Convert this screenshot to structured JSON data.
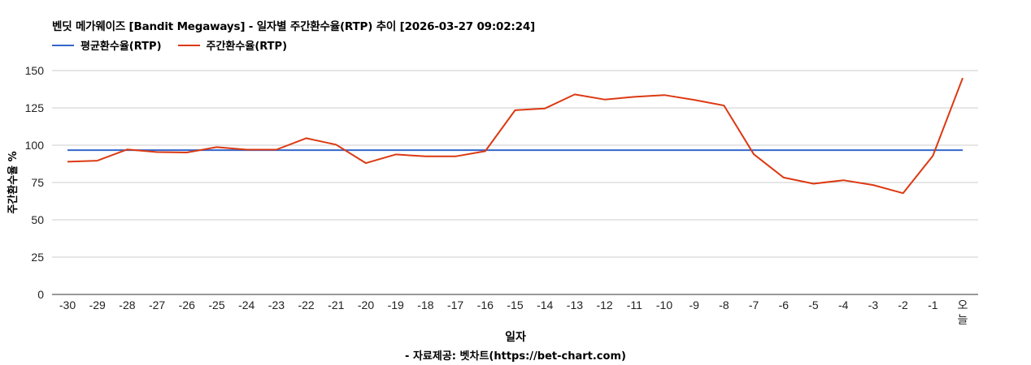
{
  "chart_data": {
    "type": "line",
    "title": "벤딧 메가웨이즈 [Bandit Megaways] - 일자별 주간환수율(RTP) 추이 [2026-03-27 09:02:24]",
    "xlabel": "일자",
    "ylabel": "주간환수율 %",
    "source": "- 자료제공: 벳차트(https://bet-chart.com)",
    "ylim": [
      0,
      150
    ],
    "yticks": [
      0,
      25,
      50,
      75,
      100,
      125,
      150
    ],
    "grid": true,
    "legend_position": "top-left",
    "categories": [
      "-30",
      "-29",
      "-28",
      "-27",
      "-26",
      "-25",
      "-24",
      "-23",
      "-22",
      "-21",
      "-20",
      "-19",
      "-18",
      "-17",
      "-16",
      "-15",
      "-14",
      "-13",
      "-12",
      "-11",
      "-10",
      "-9",
      "-8",
      "-7",
      "-6",
      "-5",
      "-4",
      "-3",
      "-2",
      "-1",
      "오늘"
    ],
    "series": [
      {
        "name": "평균환수율(RTP)",
        "color": "#3366cc",
        "values": [
          96.7,
          96.7,
          96.7,
          96.7,
          96.7,
          96.7,
          96.7,
          96.7,
          96.7,
          96.7,
          96.7,
          96.7,
          96.7,
          96.7,
          96.7,
          96.7,
          96.7,
          96.7,
          96.7,
          96.7,
          96.7,
          96.7,
          96.7,
          96.7,
          96.7,
          96.7,
          96.7,
          96.7,
          96.7,
          96.7,
          96.7
        ]
      },
      {
        "name": "주간환수율(RTP)",
        "color": "#dc3912",
        "values": [
          88.9,
          89.6,
          97.1,
          95.4,
          95.1,
          98.7,
          97.0,
          97.0,
          104.7,
          100.4,
          88.0,
          93.8,
          92.5,
          92.5,
          96.0,
          123.4,
          124.6,
          134.0,
          130.6,
          132.4,
          133.6,
          130.4,
          126.6,
          93.9,
          78.3,
          74.2,
          76.5,
          73.3,
          67.8,
          92.9,
          145.0
        ]
      }
    ]
  },
  "header": {
    "title": "벤딧 메가웨이즈 [Bandit Megaways] - 일자별 주간환수율(RTP) 추이 [2026-03-27 09:02:24]",
    "legend": [
      {
        "label": "평균환수율(RTP)",
        "color": "#3366cc"
      },
      {
        "label": "주간환수율(RTP)",
        "color": "#dc3912"
      }
    ]
  },
  "axes": {
    "xlabel": "일자",
    "ylabel": "주간환수율 %",
    "last_tick_line1": "오",
    "last_tick_line2": "늘"
  },
  "footer": {
    "source": "- 자료제공: 벳차트(https://bet-chart.com)"
  }
}
